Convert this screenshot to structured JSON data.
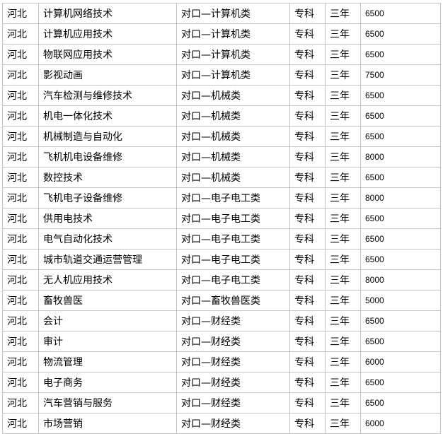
{
  "table": {
    "rows": [
      [
        "河北",
        "计算机网络技术",
        "对口—计算机类",
        "专科",
        "三年",
        "6500"
      ],
      [
        "河北",
        "计算机应用技术",
        "对口—计算机类",
        "专科",
        "三年",
        "6500"
      ],
      [
        "河北",
        "物联网应用技术",
        "对口—计算机类",
        "专科",
        "三年",
        "6500"
      ],
      [
        "河北",
        "影视动画",
        "对口—计算机类",
        "专科",
        "三年",
        "7500"
      ],
      [
        "河北",
        "汽车检测与维修技术",
        "对口—机械类",
        "专科",
        "三年",
        "6500"
      ],
      [
        "河北",
        "机电一体化技术",
        "对口—机械类",
        "专科",
        "三年",
        "6500"
      ],
      [
        "河北",
        "机械制造与自动化",
        "对口—机械类",
        "专科",
        "三年",
        "6500"
      ],
      [
        "河北",
        "飞机机电设备维修",
        "对口—机械类",
        "专科",
        "三年",
        "8000"
      ],
      [
        "河北",
        "数控技术",
        "对口—机械类",
        "专科",
        "三年",
        "6500"
      ],
      [
        "河北",
        "飞机电子设备维修",
        "对口—电子电工类",
        "专科",
        "三年",
        "8000"
      ],
      [
        "河北",
        "供用电技术",
        "对口—电子电工类",
        "专科",
        "三年",
        "6500"
      ],
      [
        "河北",
        "电气自动化技术",
        "对口—电子电工类",
        "专科",
        "三年",
        "6500"
      ],
      [
        "河北",
        "城市轨道交通运营管理",
        "对口—电子电工类",
        "专科",
        "三年",
        "6500"
      ],
      [
        "河北",
        "无人机应用技术",
        "对口—电子电工类",
        "专科",
        "三年",
        "8000"
      ],
      [
        "河北",
        "畜牧兽医",
        "对口—畜牧兽医类",
        "专科",
        "三年",
        "5000"
      ],
      [
        "河北",
        "会计",
        "对口—财经类",
        "专科",
        "三年",
        "6500"
      ],
      [
        "河北",
        "审计",
        "对口—财经类",
        "专科",
        "三年",
        "6500"
      ],
      [
        "河北",
        "物流管理",
        "对口—财经类",
        "专科",
        "三年",
        "6000"
      ],
      [
        "河北",
        "电子商务",
        "对口—财经类",
        "专科",
        "三年",
        "6500"
      ],
      [
        "河北",
        "汽车营销与服务",
        "对口—财经类",
        "专科",
        "三年",
        "6500"
      ],
      [
        "河北",
        "市场营销",
        "对口—财经类",
        "专科",
        "三年",
        "6000"
      ]
    ]
  }
}
